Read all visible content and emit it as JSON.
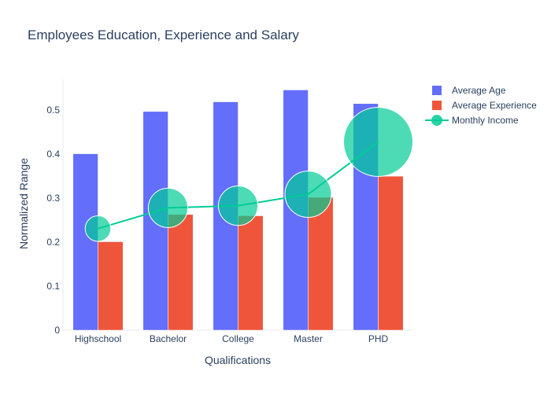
{
  "chart_data": {
    "type": "bar",
    "title": "Employees Education, Experience and Salary",
    "xlabel": "Qualifications",
    "ylabel": "Normalized Range",
    "categories": [
      "Highschool",
      "Bachelor",
      "College",
      "Master",
      "PHD"
    ],
    "ylim": [
      0,
      0.57
    ],
    "yticks": [
      0,
      0.1,
      0.2,
      0.3,
      0.4,
      0.5
    ],
    "ytick_labels": [
      "0",
      "0.1",
      "0.2",
      "0.3",
      "0.4",
      "0.5"
    ],
    "grid": false,
    "legend_position": "top-right",
    "series": [
      {
        "name": "Average Age",
        "type": "bar",
        "color": "#636efa",
        "values": [
          0.401,
          0.497,
          0.519,
          0.546,
          0.515
        ]
      },
      {
        "name": "Average Experience",
        "type": "bar",
        "color": "#ef553b",
        "values": [
          0.201,
          0.263,
          0.26,
          0.302,
          0.35
        ]
      },
      {
        "name": "Monthly Income",
        "type": "line+markers",
        "color": "#00cc96",
        "values": [
          0.231,
          0.278,
          0.283,
          0.309,
          0.428
        ],
        "marker_relative_size": [
          0.37,
          0.57,
          0.57,
          0.67,
          1.0
        ]
      }
    ]
  }
}
